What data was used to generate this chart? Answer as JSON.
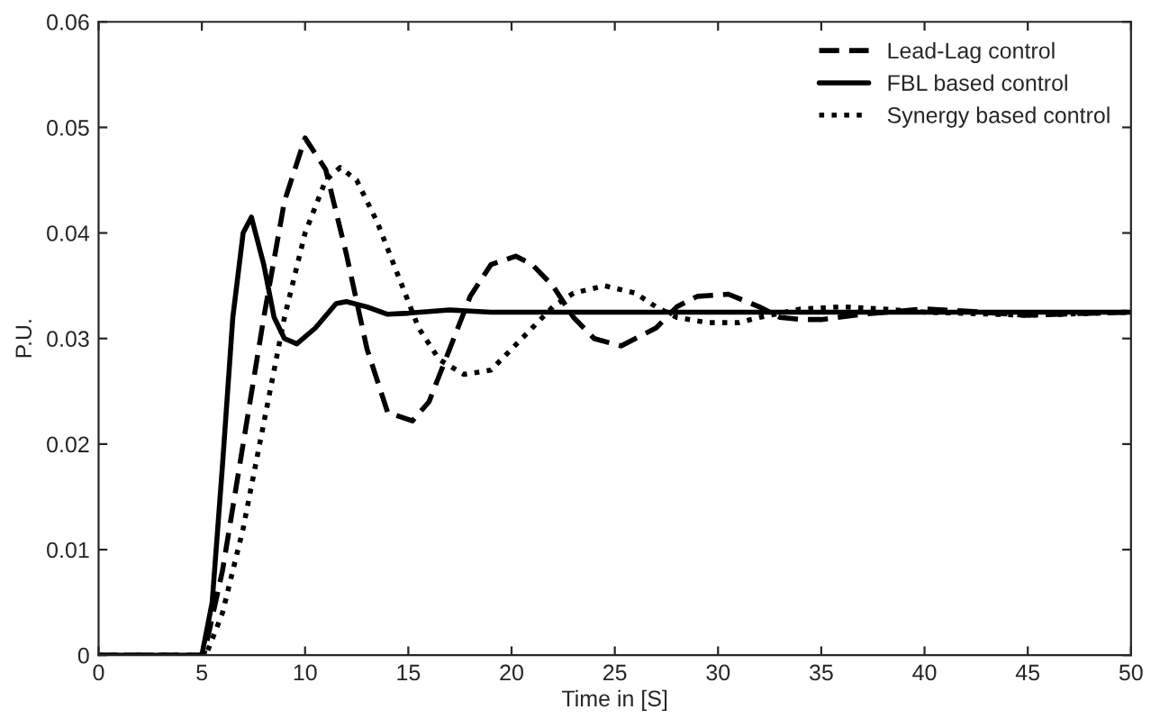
{
  "chart_data": {
    "type": "line",
    "xlabel": "Time in [S]",
    "ylabel": "P.U.",
    "xlim": [
      0,
      50
    ],
    "xticks": [
      0,
      5,
      10,
      15,
      20,
      25,
      30,
      35,
      40,
      45,
      50
    ],
    "ylim": [
      0,
      0.06
    ],
    "yticks": [
      0,
      0.01,
      0.02,
      0.03,
      0.04,
      0.05,
      0.06
    ],
    "grid": false,
    "legend": "top right",
    "series": [
      {
        "name": "Lead-Lag control",
        "color": "#000000",
        "line_style": "dashed",
        "x": [
          0,
          5.1,
          6,
          7,
          8,
          9,
          10,
          11,
          12,
          13,
          14,
          15.2,
          16,
          17,
          18,
          19,
          20.2,
          21,
          22,
          23,
          24,
          25.3,
          26,
          27,
          28,
          29,
          30.5,
          32,
          33,
          34,
          35,
          37,
          40,
          42,
          45,
          48,
          50
        ],
        "values": [
          0,
          0,
          0.008,
          0.02,
          0.032,
          0.043,
          0.049,
          0.046,
          0.038,
          0.029,
          0.023,
          0.0222,
          0.024,
          0.029,
          0.034,
          0.037,
          0.0378,
          0.037,
          0.035,
          0.032,
          0.03,
          0.0293,
          0.03,
          0.031,
          0.033,
          0.034,
          0.0342,
          0.033,
          0.032,
          0.0318,
          0.0318,
          0.0323,
          0.0328,
          0.0326,
          0.0322,
          0.0324,
          0.0325
        ]
      },
      {
        "name": "FBL based control",
        "color": "#000000",
        "line_style": "solid",
        "x": [
          0,
          5,
          5.5,
          6,
          6.5,
          7,
          7.4,
          8,
          8.5,
          9,
          9.6,
          10.5,
          11.5,
          12,
          13,
          14,
          15,
          17,
          19,
          50
        ],
        "values": [
          0,
          0,
          0.005,
          0.018,
          0.032,
          0.04,
          0.0415,
          0.037,
          0.032,
          0.03,
          0.0295,
          0.031,
          0.0333,
          0.0335,
          0.033,
          0.0323,
          0.0324,
          0.0327,
          0.0325,
          0.0325
        ]
      },
      {
        "name": "Synergy based control",
        "color": "#000000",
        "line_style": "dotted",
        "x": [
          0,
          5.2,
          6,
          7,
          8,
          9,
          10,
          11,
          11.7,
          12.5,
          13.5,
          14.5,
          15.5,
          16.5,
          17.7,
          19,
          20,
          21,
          22,
          23,
          24.5,
          26,
          27,
          28,
          29.5,
          31,
          32,
          34,
          36,
          38,
          40,
          45,
          50
        ],
        "values": [
          0,
          0,
          0.004,
          0.012,
          0.022,
          0.032,
          0.04,
          0.045,
          0.0462,
          0.045,
          0.041,
          0.036,
          0.031,
          0.028,
          0.0266,
          0.027,
          0.029,
          0.031,
          0.033,
          0.0343,
          0.035,
          0.0343,
          0.033,
          0.032,
          0.0315,
          0.0315,
          0.032,
          0.0328,
          0.033,
          0.0328,
          0.0325,
          0.0322,
          0.0325
        ]
      }
    ]
  }
}
